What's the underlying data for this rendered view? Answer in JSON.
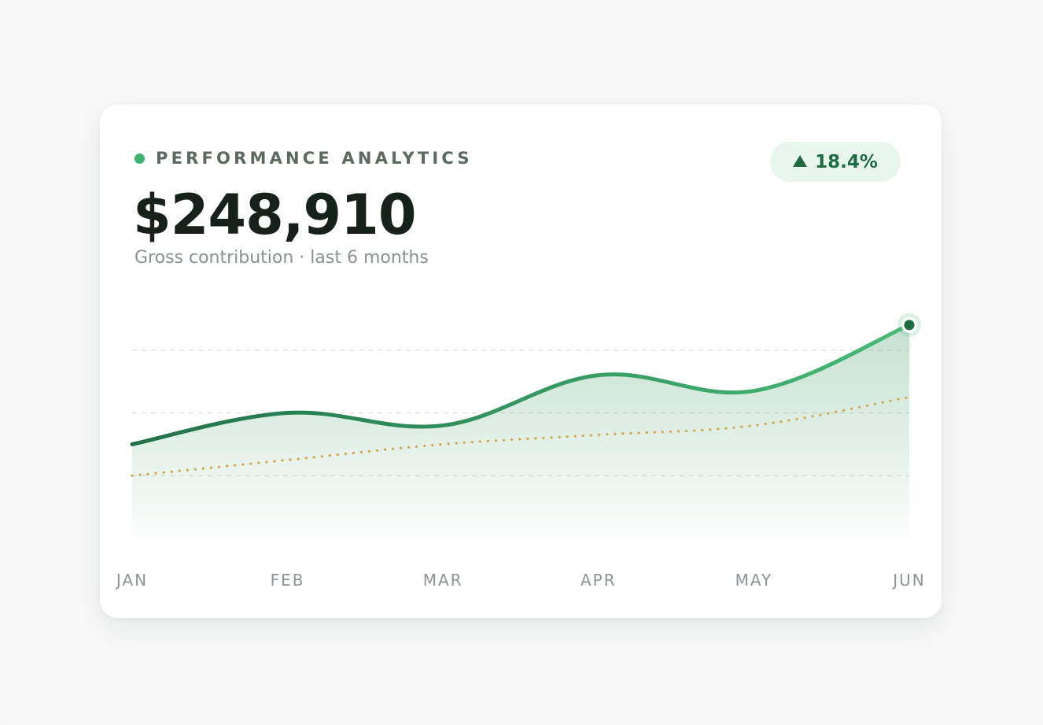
{
  "card": {
    "eyebrow": "PERFORMANCE ANALYTICS",
    "value": "$248,910",
    "subtitle": "Gross contribution · last 6 months",
    "change": "18.4%"
  },
  "colors": {
    "primary_line": "#3cb371",
    "primary_line_dark": "#1f6b41",
    "baseline": "#d4a84a",
    "grid": "#e3e6e4"
  },
  "chart_data": {
    "type": "line",
    "categories": [
      "JAN",
      "FEB",
      "MAR",
      "APR",
      "MAY",
      "JUN"
    ],
    "series": [
      {
        "values": [
          30,
          40,
          36,
          52,
          47,
          68
        ]
      },
      {
        "values": [
          20,
          25,
          30,
          33,
          36,
          45
        ]
      }
    ],
    "ylim": [
      0,
      80
    ],
    "grid": true,
    "xlabel": "",
    "ylabel": ""
  }
}
